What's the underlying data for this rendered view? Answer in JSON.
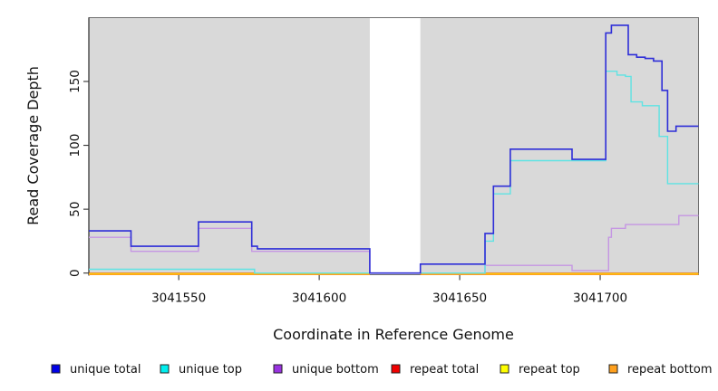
{
  "chart_data": {
    "type": "line",
    "subtype": "step",
    "title": "",
    "xlabel": "Coordinate in Reference Genome",
    "ylabel": "Read Coverage Depth",
    "xlim": [
      3041518,
      3041735
    ],
    "ylim": [
      0,
      200
    ],
    "x_ticks": [
      3041550,
      3041600,
      3041650,
      3041700
    ],
    "y_ticks": [
      0,
      50,
      100,
      150
    ],
    "grid": false,
    "plot_bg_color": "#d9d9d9",
    "no_data_region": {
      "x_start": 3041618,
      "x_end": 3041636,
      "color": "#ffffff"
    },
    "legend_position": "bottom",
    "series": [
      {
        "name": "unique total",
        "line_color": "#2e2ed8",
        "legend_color": "#0000e6",
        "crosses_gap": true,
        "points": [
          [
            3041518,
            33
          ],
          [
            3041533,
            21
          ],
          [
            3041557,
            40
          ],
          [
            3041576,
            21
          ],
          [
            3041578,
            19
          ],
          [
            3041618,
            0
          ],
          [
            3041636,
            7
          ],
          [
            3041659,
            31
          ],
          [
            3041662,
            68
          ],
          [
            3041668,
            97
          ],
          [
            3041690,
            89
          ],
          [
            3041702,
            188
          ],
          [
            3041704,
            194
          ],
          [
            3041710,
            171
          ],
          [
            3041713,
            169
          ],
          [
            3041716,
            168
          ],
          [
            3041719,
            166
          ],
          [
            3041722,
            143
          ],
          [
            3041724,
            111
          ],
          [
            3041727,
            115
          ]
        ]
      },
      {
        "name": "unique top",
        "line_color": "#5fe3e3",
        "legend_color": "#00eeee",
        "crosses_gap": true,
        "points": [
          [
            3041518,
            3
          ],
          [
            3041577,
            0
          ],
          [
            3041659,
            25
          ],
          [
            3041662,
            62
          ],
          [
            3041668,
            88
          ],
          [
            3041702,
            158
          ],
          [
            3041706,
            155
          ],
          [
            3041709,
            154
          ],
          [
            3041711,
            134
          ],
          [
            3041715,
            131
          ],
          [
            3041721,
            107
          ],
          [
            3041724,
            70
          ]
        ]
      },
      {
        "name": "unique bottom",
        "line_color": "#c596e3",
        "legend_color": "#9933e0",
        "crosses_gap": true,
        "points": [
          [
            3041518,
            28
          ],
          [
            3041533,
            17
          ],
          [
            3041557,
            35
          ],
          [
            3041576,
            17
          ],
          [
            3041618,
            0
          ],
          [
            3041659,
            6
          ],
          [
            3041690,
            2
          ],
          [
            3041703,
            28
          ],
          [
            3041704,
            35
          ],
          [
            3041709,
            38
          ],
          [
            3041728,
            45
          ]
        ]
      },
      {
        "name": "repeat total",
        "line_color": "#e00000",
        "legend_color": "#f00000",
        "crosses_gap": false,
        "points": [
          [
            3041518,
            0
          ]
        ]
      },
      {
        "name": "repeat top",
        "line_color": "#ffef00",
        "legend_color": "#ffff00",
        "crosses_gap": false,
        "points": [
          [
            3041518,
            0
          ]
        ]
      },
      {
        "name": "repeat bottom",
        "line_color": "#ff9d1e",
        "legend_color": "#ffa01e",
        "crosses_gap": false,
        "points": [
          [
            3041518,
            0
          ]
        ]
      }
    ]
  }
}
